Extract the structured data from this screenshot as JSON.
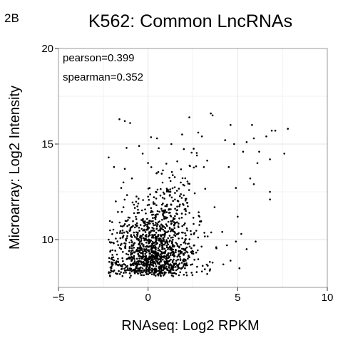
{
  "panel_label": "2B",
  "chart_data": {
    "type": "scatter",
    "title": "K562: Common LncRNAs",
    "xlabel": "RNAseq: Log2 RPKM",
    "ylabel": "Microarray: Log2 Intensity",
    "xlim": [
      -5,
      10
    ],
    "ylim": [
      7.5,
      20
    ],
    "xticks": [
      -5,
      0,
      5,
      10
    ],
    "yticks": [
      10,
      15,
      20
    ],
    "grid": true,
    "legend": "none",
    "point_color": "#000000",
    "annotations": [
      "pearson=0.399",
      "spearman=0.352"
    ],
    "series": [
      {
        "values": [
          [
            -1.6,
            16.3
          ],
          [
            -1.3,
            16.2
          ],
          [
            -1.0,
            16.1
          ],
          [
            2.3,
            16.4
          ],
          [
            3.5,
            16.6
          ],
          [
            3.6,
            16.5
          ],
          [
            4.6,
            16.0
          ],
          [
            5.8,
            16.0
          ],
          [
            6.9,
            15.7
          ],
          [
            7.1,
            15.7
          ],
          [
            7.8,
            15.8
          ],
          [
            5.9,
            15.3
          ],
          [
            6.6,
            15.4
          ],
          [
            5.5,
            15.1
          ],
          [
            4.8,
            15.0
          ],
          [
            4.3,
            15.2
          ],
          [
            3.0,
            15.4
          ],
          [
            2.8,
            15.6
          ],
          [
            1.9,
            15.5
          ],
          [
            1.3,
            15.0
          ],
          [
            0.5,
            15.3
          ],
          [
            -0.5,
            14.9
          ],
          [
            -1.2,
            14.8
          ],
          [
            -0.3,
            14.5
          ],
          [
            5.3,
            14.6
          ],
          [
            6.2,
            14.6
          ],
          [
            6.8,
            14.2
          ],
          [
            7.6,
            14.5
          ],
          [
            6.1,
            14.0
          ],
          [
            5.7,
            13.2
          ],
          [
            4.5,
            13.8
          ],
          [
            4.9,
            12.7
          ],
          [
            5.9,
            12.9
          ],
          [
            6.8,
            12.1
          ],
          [
            6.8,
            12.5
          ],
          [
            5.0,
            11.2
          ],
          [
            5.2,
            10.3
          ],
          [
            6.0,
            9.9
          ],
          [
            5.5,
            9.5
          ],
          [
            4.9,
            9.9
          ],
          [
            4.6,
            8.9
          ],
          [
            4.2,
            8.7
          ],
          [
            4.4,
            9.7
          ],
          [
            3.6,
            8.8
          ],
          [
            3.8,
            9.6
          ],
          [
            3.3,
            8.2
          ],
          [
            5.1,
            8.5
          ],
          [
            -2.2,
            14.3
          ],
          [
            -1.9,
            13.8
          ],
          [
            -2.2,
            10.0
          ],
          [
            -1.8,
            12.0
          ],
          [
            -1.5,
            12.7
          ],
          [
            -1.3,
            13.7
          ],
          [
            -0.9,
            13.2
          ]
        ]
      }
    ]
  }
}
